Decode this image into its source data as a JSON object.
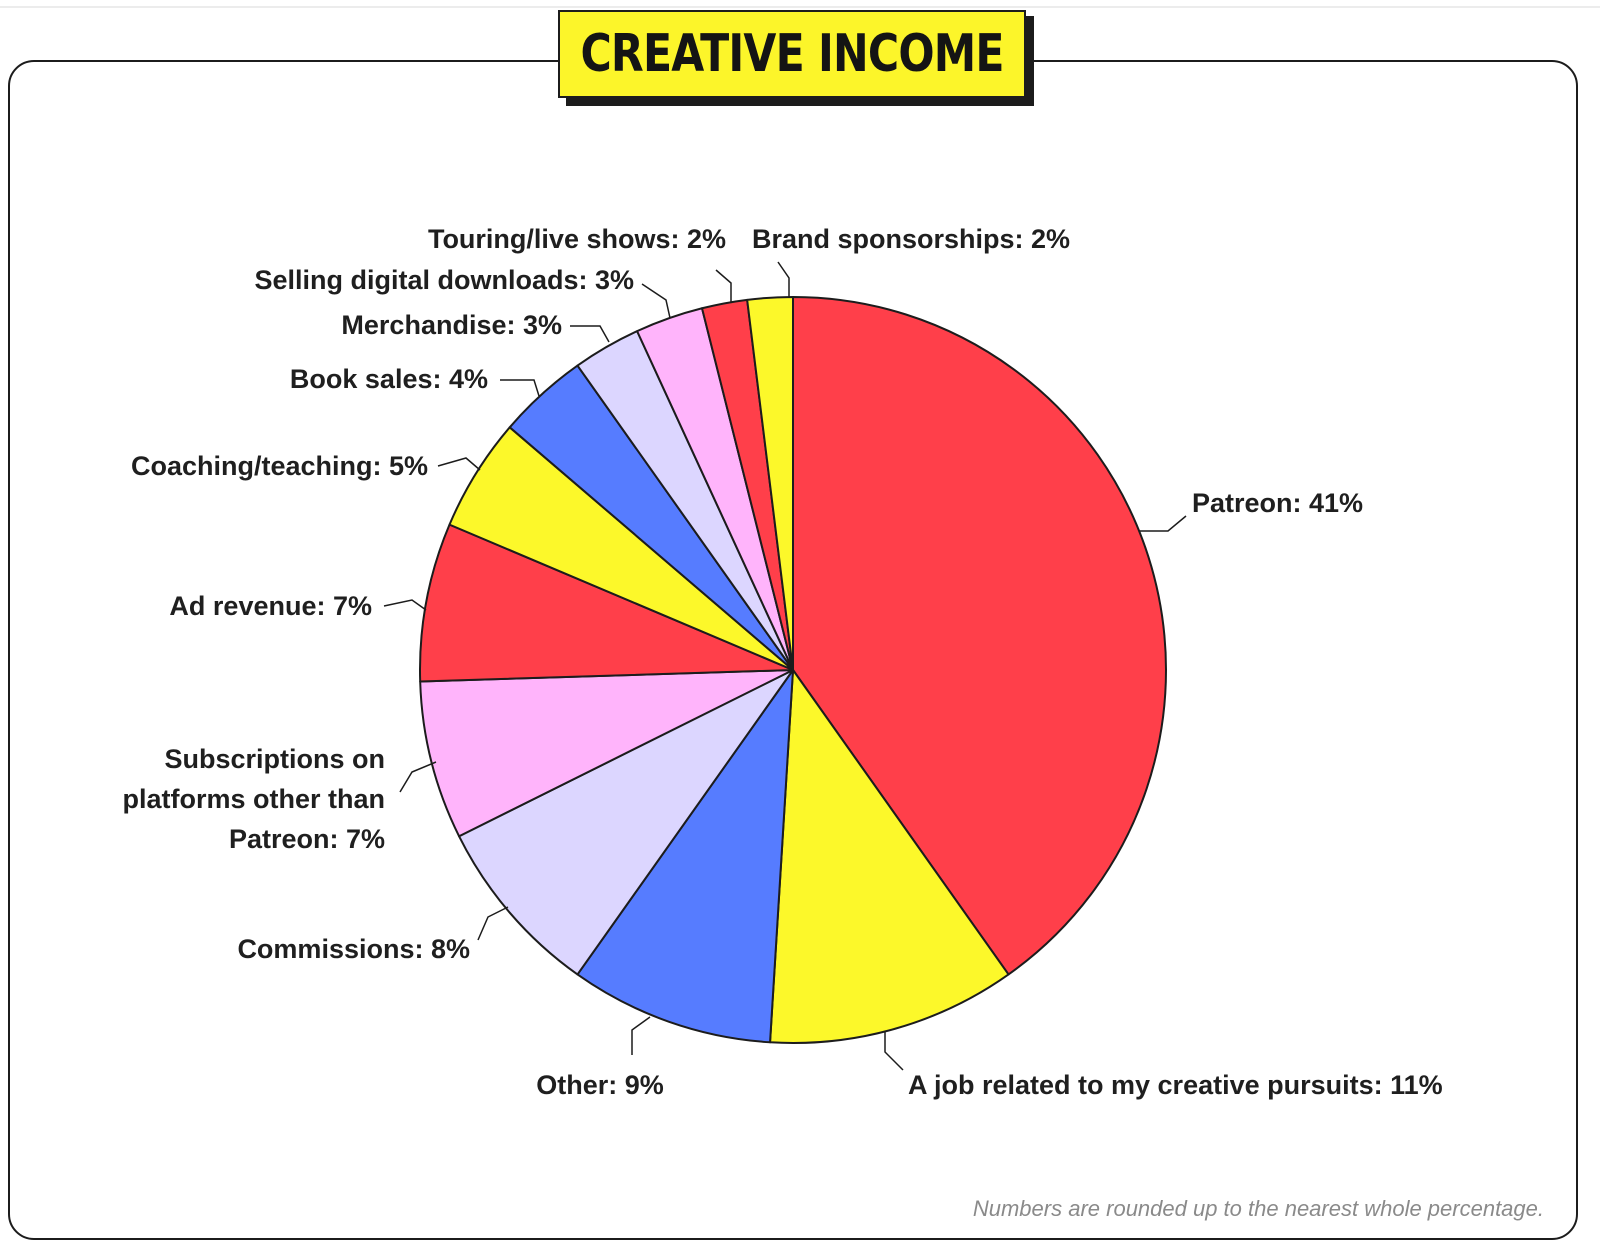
{
  "chart_data": {
    "type": "pie",
    "title": "CREATIVE INCOME",
    "unit": "%",
    "start_angle_deg": 0,
    "direction": "clockwise",
    "slices": [
      {
        "label": "Patreon: 41%",
        "value": 41,
        "color": "#ff3f4a"
      },
      {
        "label": "A job related to my creative pursuits: 11%",
        "value": 11,
        "color": "#fcf82a"
      },
      {
        "label": "Other: 9%",
        "value": 9,
        "color": "#567cff"
      },
      {
        "label": "Commissions: 8%",
        "value": 8,
        "color": "#dcd6ff"
      },
      {
        "label": "Subscriptions on platforms other than Patreon: 7%",
        "label_lines": [
          "Subscriptions on",
          "platforms other than",
          "Patreon: 7%"
        ],
        "value": 7,
        "color": "#ffb4fb"
      },
      {
        "label": "Ad revenue: 7%",
        "value": 7,
        "color": "#ff3f4a"
      },
      {
        "label": "Coaching/teaching: 5%",
        "value": 5,
        "color": "#fcf82a"
      },
      {
        "label": "Book sales: 4%",
        "value": 4,
        "color": "#567cff"
      },
      {
        "label": "Merchandise: 3%",
        "value": 3,
        "color": "#dcd6ff"
      },
      {
        "label": "Selling digital downloads: 3%",
        "value": 3,
        "color": "#ffb4fb"
      },
      {
        "label": "Touring/live shows: 2%",
        "value": 2,
        "color": "#ff3f4a"
      },
      {
        "label": "Brand sponsorships: 2%",
        "value": 2,
        "color": "#fcf82a"
      }
    ],
    "footnote": "Numbers are rounded up to the nearest whole percentage."
  }
}
